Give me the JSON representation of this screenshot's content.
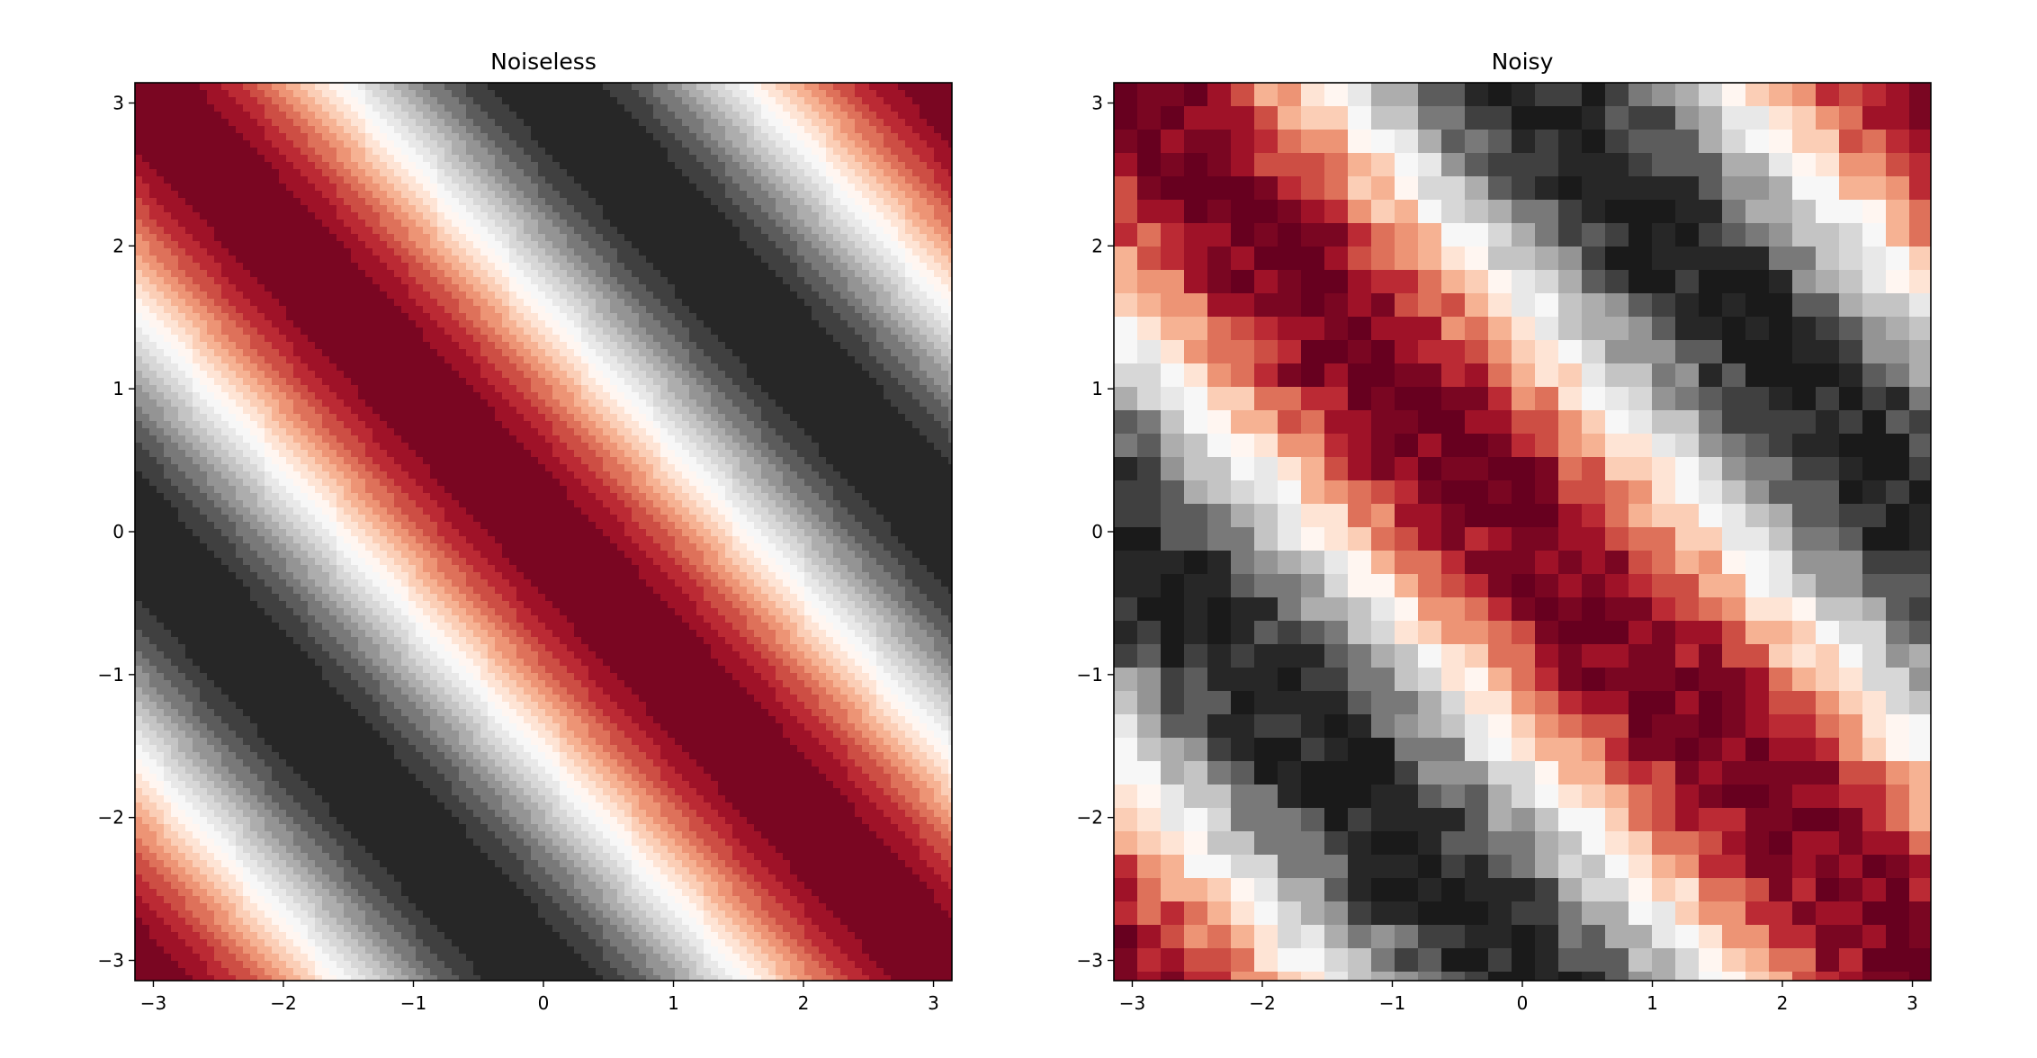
{
  "chart_data": [
    {
      "type": "heatmap",
      "subtype": "filled-contour",
      "title": "Noiseless",
      "xlabel": "",
      "ylabel": "",
      "xlim": [
        -3.14159,
        3.14159
      ],
      "ylim": [
        -3.14159,
        3.14159
      ],
      "xticks": [
        -3,
        -2,
        -1,
        0,
        1,
        2,
        3
      ],
      "yticks": [
        -3,
        -2,
        -1,
        0,
        1,
        2,
        3
      ],
      "xtick_labels": [
        "−3",
        "−2",
        "−1",
        "0",
        "1",
        "2",
        "3"
      ],
      "ytick_labels": [
        "−3",
        "−2",
        "−1",
        "0",
        "1",
        "2",
        "3"
      ],
      "function": "cos(x + y)",
      "value_range": [
        -1,
        1
      ],
      "contour_levels": 20,
      "colormap": "RdGy",
      "noise": 0,
      "grid": false
    },
    {
      "type": "heatmap",
      "subtype": "filled-contour",
      "title": "Noisy",
      "xlabel": "",
      "ylabel": "",
      "xlim": [
        -3.14159,
        3.14159
      ],
      "ylim": [
        -3.14159,
        3.14159
      ],
      "xticks": [
        -3,
        -2,
        -1,
        0,
        1,
        2,
        3
      ],
      "yticks": [
        -3,
        -2,
        -1,
        0,
        1,
        2,
        3
      ],
      "xtick_labels": [
        "−3",
        "−2",
        "−1",
        "0",
        "1",
        "2",
        "3"
      ],
      "ytick_labels": [
        "−3",
        "−2",
        "−1",
        "0",
        "1",
        "2",
        "3"
      ],
      "function": "cos(x + y) + noise",
      "value_range": [
        -1,
        1
      ],
      "contour_levels": 20,
      "colormap": "RdGy",
      "noise": 0.15,
      "grid": false
    }
  ],
  "colormap_stops": [
    "#67001f",
    "#b2182b",
    "#d6604d",
    "#f4a582",
    "#fddbc7",
    "#ffffff",
    "#e0e0e0",
    "#bababa",
    "#878787",
    "#4d4d4d",
    "#1a1a1a"
  ]
}
